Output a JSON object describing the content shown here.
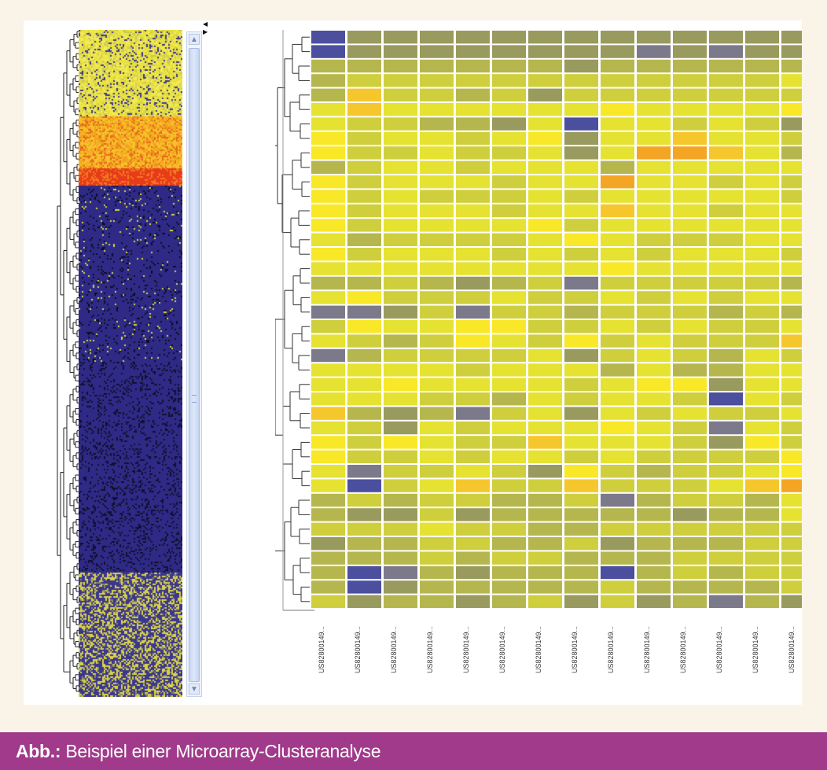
{
  "caption": {
    "label": "Abb.:",
    "text": " Beispiel einer Microarray-Clusteranalyse"
  },
  "colors": {
    "background": "#faf4e8",
    "caption_bar": "#a13a8a",
    "caption_text": "#ffffff",
    "heatmap_scale": [
      "#4b4f9e",
      "#7c7a8a",
      "#999a5e",
      "#b5b74e",
      "#cfcf3e",
      "#e6e232",
      "#f8e828",
      "#f5c72d",
      "#f5a524"
    ]
  },
  "scrollbar": {
    "up_icon": "▲",
    "down_icon": "▼",
    "splitter_icon": "◀\n▶"
  },
  "chart_data": [
    {
      "type": "heatmap",
      "title": "",
      "description_level_scale": "0 = blue (low) ... 8 = orange (high)",
      "rows": 40,
      "columns": 14,
      "x_tick_labels": [
        "US82800149...",
        "US82800149...",
        "US82800149...",
        "US82800149...",
        "US82800149...",
        "US82800149...",
        "US82800149...",
        "US82800149...",
        "US82800149...",
        "US82800149...",
        "US82800149...",
        "US82800149...",
        "US82800149...",
        "US82800149..."
      ],
      "values": [
        [
          0,
          2,
          2,
          2,
          2,
          2,
          2,
          2,
          2,
          2,
          2,
          2,
          2,
          2
        ],
        [
          0,
          2,
          2,
          2,
          2,
          2,
          2,
          2,
          2,
          1,
          2,
          1,
          2,
          2
        ],
        [
          3,
          3,
          3,
          3,
          3,
          3,
          3,
          2,
          3,
          3,
          3,
          3,
          3,
          3
        ],
        [
          3,
          4,
          4,
          4,
          4,
          4,
          4,
          4,
          4,
          4,
          4,
          4,
          4,
          5
        ],
        [
          3,
          7,
          4,
          4,
          3,
          4,
          2,
          4,
          4,
          4,
          4,
          4,
          4,
          4
        ],
        [
          5,
          7,
          5,
          5,
          5,
          5,
          5,
          5,
          6,
          5,
          5,
          5,
          5,
          6
        ],
        [
          5,
          4,
          4,
          3,
          3,
          2,
          5,
          0,
          5,
          5,
          4,
          5,
          4,
          2
        ],
        [
          6,
          4,
          5,
          5,
          4,
          5,
          6,
          2,
          5,
          5,
          7,
          5,
          5,
          4
        ],
        [
          6,
          4,
          4,
          5,
          4,
          4,
          5,
          2,
          5,
          8,
          8,
          7,
          5,
          3
        ],
        [
          3,
          4,
          5,
          5,
          4,
          5,
          5,
          5,
          3,
          5,
          5,
          5,
          5,
          5
        ],
        [
          6,
          4,
          5,
          5,
          5,
          4,
          5,
          5,
          8,
          5,
          5,
          4,
          5,
          4
        ],
        [
          6,
          4,
          5,
          4,
          4,
          4,
          5,
          4,
          5,
          5,
          5,
          5,
          5,
          4
        ],
        [
          6,
          4,
          5,
          5,
          5,
          4,
          5,
          5,
          7,
          5,
          5,
          4,
          5,
          5
        ],
        [
          6,
          4,
          5,
          5,
          5,
          5,
          6,
          4,
          5,
          5,
          5,
          5,
          5,
          5
        ],
        [
          5,
          3,
          4,
          4,
          4,
          4,
          5,
          6,
          5,
          4,
          4,
          4,
          5,
          5
        ],
        [
          6,
          4,
          5,
          5,
          5,
          4,
          5,
          4,
          5,
          4,
          5,
          5,
          5,
          4
        ],
        [
          5,
          5,
          5,
          5,
          5,
          5,
          5,
          5,
          6,
          5,
          5,
          5,
          5,
          5
        ],
        [
          3,
          3,
          4,
          3,
          2,
          3,
          4,
          1,
          4,
          4,
          4,
          4,
          4,
          3
        ],
        [
          5,
          6,
          4,
          4,
          4,
          5,
          4,
          4,
          5,
          4,
          5,
          4,
          5,
          5
        ],
        [
          1,
          1,
          2,
          4,
          1,
          4,
          4,
          3,
          4,
          4,
          4,
          3,
          4,
          3
        ],
        [
          4,
          6,
          5,
          5,
          6,
          6,
          4,
          4,
          5,
          4,
          5,
          4,
          4,
          5
        ],
        [
          5,
          4,
          3,
          4,
          6,
          5,
          4,
          6,
          4,
          5,
          4,
          4,
          4,
          7
        ],
        [
          1,
          3,
          4,
          4,
          4,
          4,
          5,
          2,
          4,
          5,
          4,
          3,
          5,
          4
        ],
        [
          5,
          5,
          5,
          5,
          4,
          5,
          5,
          5,
          3,
          5,
          3,
          3,
          5,
          5
        ],
        [
          5,
          5,
          6,
          5,
          5,
          5,
          5,
          4,
          5,
          6,
          6,
          2,
          5,
          5
        ],
        [
          5,
          5,
          5,
          4,
          4,
          3,
          5,
          4,
          5,
          5,
          4,
          0,
          5,
          4
        ],
        [
          7,
          3,
          2,
          3,
          1,
          4,
          5,
          2,
          5,
          4,
          5,
          4,
          4,
          5
        ],
        [
          5,
          4,
          2,
          5,
          4,
          5,
          5,
          5,
          6,
          5,
          4,
          1,
          5,
          4
        ],
        [
          6,
          4,
          6,
          5,
          4,
          4,
          7,
          5,
          5,
          5,
          4,
          2,
          6,
          4
        ],
        [
          6,
          4,
          4,
          5,
          4,
          5,
          5,
          4,
          5,
          4,
          4,
          4,
          4,
          6
        ],
        [
          5,
          1,
          4,
          4,
          5,
          4,
          2,
          6,
          4,
          3,
          4,
          4,
          5,
          6
        ],
        [
          5,
          0,
          4,
          5,
          7,
          4,
          4,
          7,
          4,
          4,
          4,
          5,
          7,
          8
        ],
        [
          3,
          4,
          3,
          4,
          4,
          3,
          3,
          4,
          1,
          3,
          4,
          4,
          3,
          5
        ],
        [
          3,
          2,
          2,
          4,
          2,
          3,
          3,
          3,
          3,
          3,
          2,
          3,
          3,
          5
        ],
        [
          4,
          4,
          4,
          5,
          4,
          4,
          3,
          3,
          4,
          4,
          4,
          4,
          4,
          4
        ],
        [
          2,
          3,
          3,
          4,
          4,
          3,
          3,
          4,
          2,
          3,
          3,
          3,
          4,
          4
        ],
        [
          3,
          3,
          3,
          4,
          3,
          4,
          4,
          3,
          3,
          3,
          4,
          4,
          4,
          4
        ],
        [
          3,
          0,
          1,
          3,
          2,
          3,
          3,
          3,
          0,
          3,
          4,
          3,
          4,
          4
        ],
        [
          3,
          0,
          2,
          3,
          3,
          3,
          3,
          3,
          4,
          3,
          3,
          3,
          3,
          4
        ],
        [
          4,
          2,
          3,
          3,
          2,
          3,
          4,
          2,
          4,
          2,
          3,
          1,
          3,
          2
        ]
      ]
    }
  ]
}
